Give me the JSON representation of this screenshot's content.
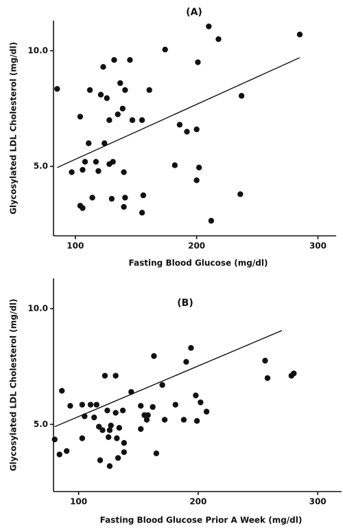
{
  "chart_data": [
    {
      "type": "scatter",
      "title": "(A)",
      "x_label": "Fasting  Blood  Glucose  (mg/dl)",
      "y_label": "Glycosylated  LDL  Cholesterol  (mg/dl)",
      "xlim": [
        82,
        315
      ],
      "ylim": [
        2.0,
        11.3
      ],
      "xticks": [
        100,
        200,
        300
      ],
      "yticks": [
        {
          "value": 5,
          "label": "5.0"
        },
        {
          "value": 10,
          "label": "10.0"
        }
      ],
      "color": "#111111",
      "x": [
        85,
        97,
        104,
        106,
        106,
        104,
        108,
        111,
        112,
        114,
        117,
        119,
        121,
        123,
        124,
        126,
        128,
        128,
        130,
        131,
        132,
        135,
        137,
        139,
        140,
        140,
        141,
        141,
        145,
        147,
        155,
        155,
        156,
        161,
        174,
        182,
        186,
        192,
        200,
        200,
        201,
        202,
        210,
        212,
        218,
        236,
        237,
        285
      ],
      "y": [
        8.35,
        4.75,
        3.3,
        3.2,
        4.85,
        7.15,
        5.2,
        6.0,
        8.3,
        3.65,
        5.2,
        4.8,
        8.1,
        9.3,
        6.0,
        7.95,
        5.1,
        7.0,
        3.6,
        5.2,
        9.6,
        7.25,
        8.6,
        7.5,
        3.25,
        4.75,
        8.3,
        3.65,
        9.6,
        7.0,
        7.0,
        3.0,
        3.75,
        8.3,
        10.05,
        5.05,
        6.8,
        6.5,
        6.6,
        4.4,
        9.5,
        4.95,
        11.05,
        2.65,
        10.5,
        3.8,
        8.05,
        10.7
      ],
      "fit": {
        "x": [
          85,
          285
        ],
        "y": [
          4.95,
          9.7
        ]
      }
    },
    {
      "type": "scatter",
      "title": "(B)",
      "x_label": "Fasting  Blood  Glucose  Prior  A  Week  (mg/dl)",
      "y_label": "Glycosylated  LDL  Cholesterol  (mg/dl)",
      "xlim": [
        79,
        320
      ],
      "ylim": [
        2.1,
        11.3
      ],
      "xticks": [
        100,
        200,
        300
      ],
      "yticks": [
        {
          "value": 5,
          "label": "5.0"
        },
        {
          "value": 10,
          "label": "10.0"
        }
      ],
      "color": "#111111",
      "x": [
        80,
        84,
        86,
        90,
        93,
        103,
        103,
        105,
        110,
        113,
        115,
        117,
        118,
        120,
        122,
        124,
        125,
        126,
        126,
        127,
        131,
        131,
        132,
        133,
        134,
        137,
        138,
        138,
        144,
        152,
        152,
        155,
        157,
        158,
        162,
        163,
        165,
        170,
        172,
        181,
        188,
        190,
        194,
        198,
        199,
        202,
        207,
        256,
        258,
        278,
        280
      ],
      "y": [
        4.35,
        3.7,
        6.45,
        3.85,
        5.8,
        5.85,
        4.4,
        5.35,
        5.85,
        5.3,
        5.85,
        4.9,
        3.45,
        4.75,
        7.1,
        5.6,
        4.45,
        3.2,
        4.75,
        4.95,
        7.1,
        5.5,
        4.4,
        3.55,
        4.85,
        5.6,
        3.8,
        4.2,
        6.4,
        4.8,
        5.8,
        5.4,
        5.2,
        5.4,
        5.75,
        7.95,
        3.75,
        6.7,
        5.2,
        5.85,
        5.2,
        7.7,
        8.3,
        6.25,
        5.15,
        5.95,
        5.55,
        7.75,
        7.0,
        7.1,
        7.2
      ],
      "fit": {
        "x": [
          80,
          270
        ],
        "y": [
          4.9,
          9.05
        ]
      }
    }
  ]
}
